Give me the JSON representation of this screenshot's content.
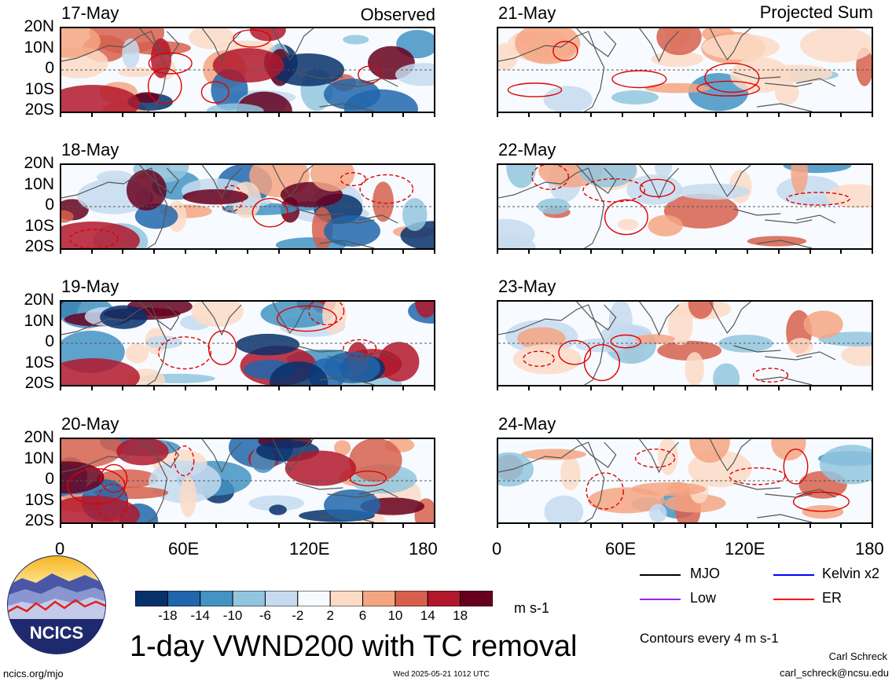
{
  "header": {
    "left_label": "Observed",
    "right_label": "Projected Sum"
  },
  "panels": {
    "observed": [
      "17-May",
      "18-May",
      "19-May",
      "20-May"
    ],
    "projected": [
      "21-May",
      "22-May",
      "23-May",
      "24-May"
    ]
  },
  "lat_labels": [
    "20N",
    "10N",
    "0",
    "10S",
    "20S"
  ],
  "lon_labels": [
    "0",
    "60E",
    "120E",
    "180"
  ],
  "colorbar": {
    "labels": [
      "-18",
      "-14",
      "-10",
      "-6",
      "-2",
      "2",
      "6",
      "10",
      "14",
      "18"
    ],
    "colors": [
      "#08306b",
      "#2166ac",
      "#4393c3",
      "#92c5de",
      "#c6dbef",
      "#f7fbff",
      "#fddbc7",
      "#f4a582",
      "#d6604d",
      "#b2182b",
      "#67001f"
    ],
    "unit": "m s-1"
  },
  "legend": {
    "items": [
      {
        "label": "MJO",
        "color": "#000000"
      },
      {
        "label": "Kelvin x2",
        "color": "#0000ff"
      },
      {
        "label": "Low",
        "color": "#a020f0"
      },
      {
        "label": "ER",
        "color": "#ff0000"
      }
    ],
    "contours_note": "Contours every 4 m s-1"
  },
  "footer": {
    "title": "1-day VWND200 with TC removal",
    "logo_text": "NCICS",
    "site": "ncics.org/mjo",
    "timestamp": "Wed 2025-05-21 1012 UTC",
    "author": "Carl Schreck",
    "email": "carl_schreck@ncsu.edu"
  }
}
